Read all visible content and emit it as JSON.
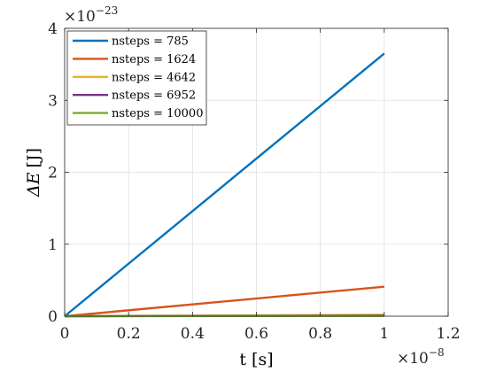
{
  "chart_data": {
    "type": "line",
    "xlabel": "t [s]",
    "ylabel_symbol": "ΔE",
    "ylabel_unit": "[J]",
    "x_exponent_base": "×10",
    "x_exponent_power": "−8",
    "y_exponent_base": "×10",
    "y_exponent_power": "−23",
    "xlim": [
      0,
      1.2
    ],
    "ylim": [
      0,
      4
    ],
    "x_ticks": [
      0,
      0.2,
      0.4,
      0.6,
      0.8,
      1,
      1.2
    ],
    "y_ticks": [
      0,
      1,
      2,
      3,
      4
    ],
    "x_tick_labels": [
      "0",
      "0.2",
      "0.4",
      "0.6",
      "0.8",
      "1",
      "1.2"
    ],
    "y_tick_labels": [
      "0",
      "1",
      "2",
      "3",
      "4"
    ],
    "grid": true,
    "legend_position": "top-left",
    "series": [
      {
        "name": "nsteps = 785",
        "color": "#0072BD",
        "x": [
          0,
          1
        ],
        "y": [
          0,
          3.65
        ]
      },
      {
        "name": "nsteps = 1624",
        "color": "#D95319",
        "x": [
          0,
          1
        ],
        "y": [
          0,
          0.41
        ]
      },
      {
        "name": "nsteps = 4642",
        "color": "#EDB120",
        "x": [
          0,
          1
        ],
        "y": [
          0,
          0.02
        ]
      },
      {
        "name": "nsteps = 6952",
        "color": "#7E2F8E",
        "x": [
          0,
          1
        ],
        "y": [
          0,
          0.01
        ]
      },
      {
        "name": "nsteps = 10000",
        "color": "#77AC30",
        "x": [
          0,
          1
        ],
        "y": [
          0,
          0.004
        ]
      }
    ]
  }
}
